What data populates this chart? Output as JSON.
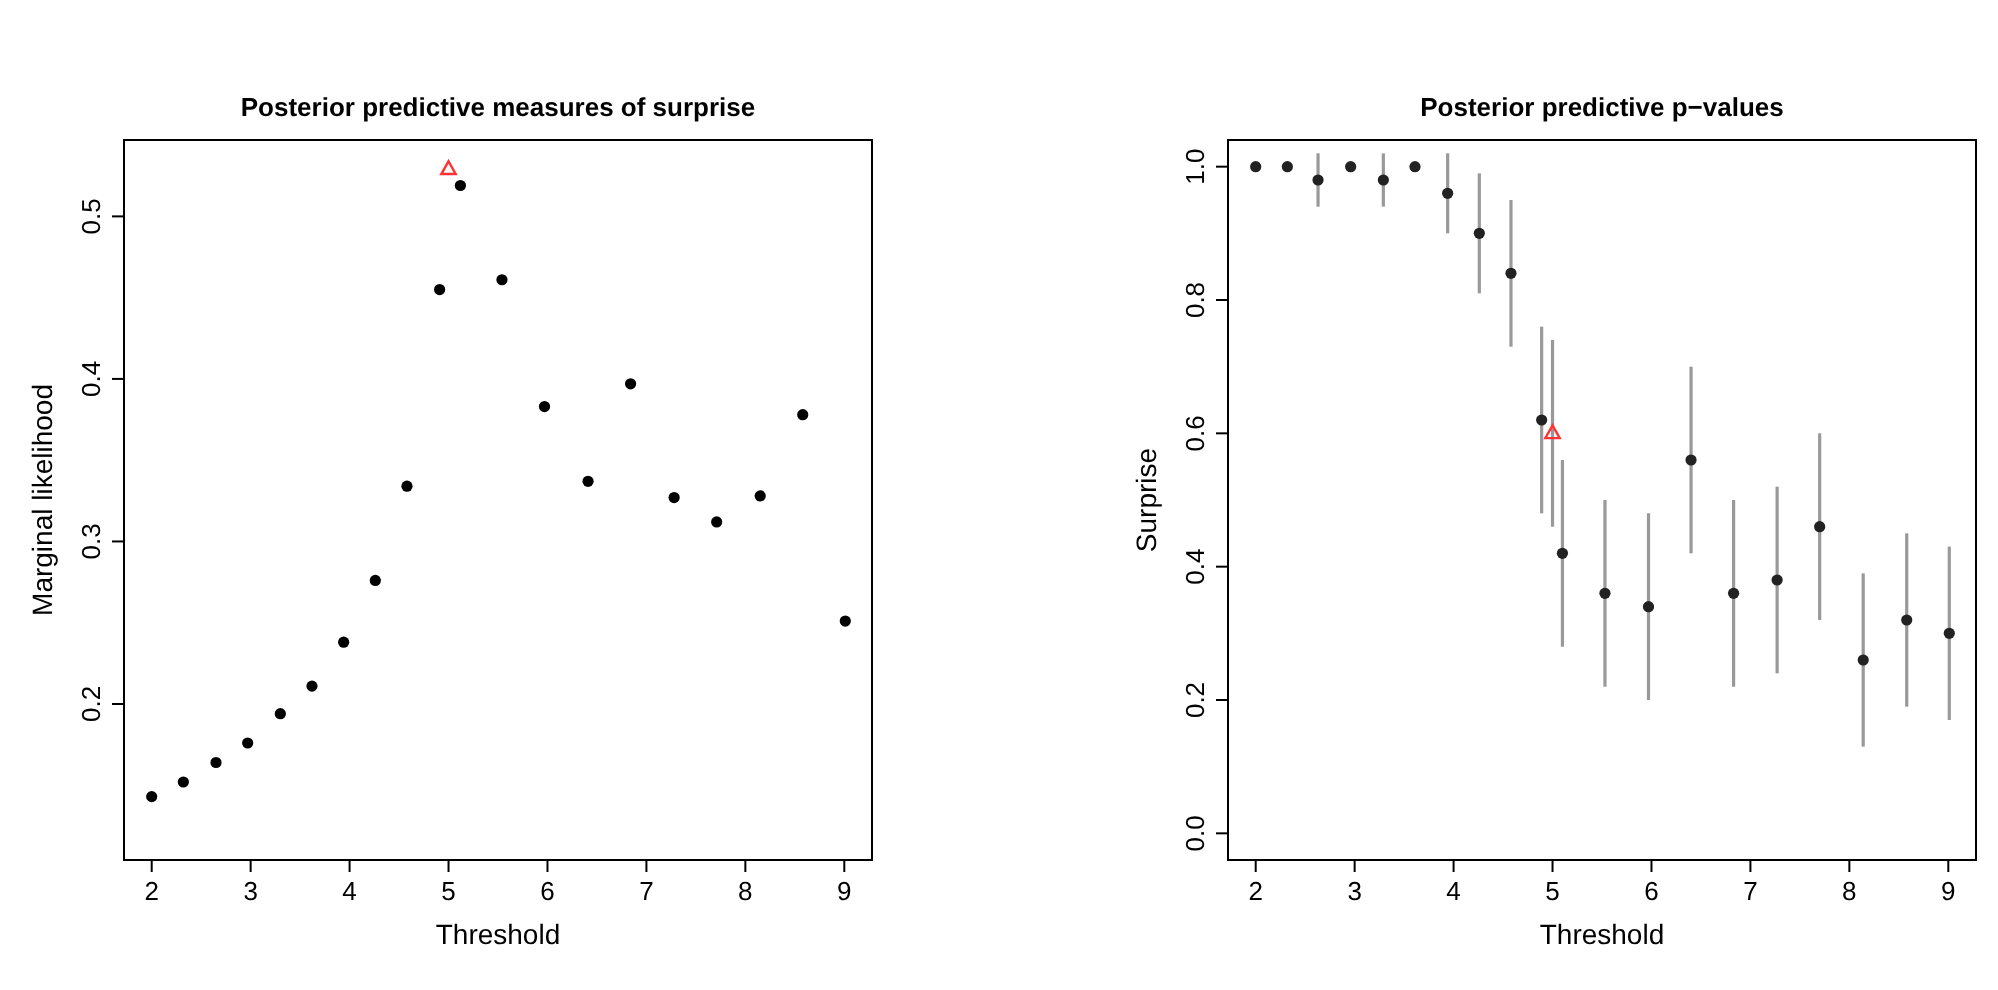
{
  "chart_data": [
    {
      "type": "scatter",
      "title": "Posterior predictive measures of surprise",
      "xlabel": "Threshold",
      "ylabel": "Marginal likelihood",
      "xlim": [
        1.72,
        9.28
      ],
      "xticks": [
        2,
        3,
        4,
        5,
        6,
        7,
        8,
        9
      ],
      "ylim": [
        0.104,
        0.547
      ],
      "yticks": [
        0.2,
        0.3,
        0.4,
        0.5
      ],
      "grid": false,
      "series": [
        {
          "color": "#000000",
          "marker": "circle",
          "x": [
            2.0,
            2.32,
            2.65,
            2.97,
            3.3,
            3.62,
            3.94,
            4.26,
            4.58,
            4.91,
            5.12,
            5.54,
            5.97,
            6.41,
            6.84,
            7.28,
            7.71,
            8.15,
            8.58,
            9.01
          ],
          "values": [
            0.143,
            0.152,
            0.164,
            0.176,
            0.194,
            0.211,
            0.238,
            0.276,
            0.334,
            0.455,
            0.519,
            0.461,
            0.383,
            0.337,
            0.397,
            0.327,
            0.312,
            0.328,
            0.378,
            0.251
          ]
        },
        {
          "color": "#ff3333",
          "marker": "triangle",
          "x": [
            5.0
          ],
          "values": [
            0.529
          ]
        }
      ]
    },
    {
      "type": "scatter",
      "title": "Posterior predictive p−values",
      "xlabel": "Threshold",
      "ylabel": "Surprise",
      "xlim": [
        1.72,
        9.28
      ],
      "xticks": [
        2,
        3,
        4,
        5,
        6,
        7,
        8,
        9
      ],
      "ylim": [
        -0.04,
        1.04
      ],
      "yticks": [
        {
          "value": 0,
          "label": "0.0"
        },
        0.2,
        0.4,
        0.6,
        0.8,
        {
          "value": 1,
          "label": "1.0"
        }
      ],
      "grid": false,
      "series": [
        {
          "color": "#222222",
          "marker": "circle",
          "x": [
            2.0,
            2.32,
            2.63,
            2.96,
            3.29,
            3.61,
            3.94,
            4.26,
            4.58,
            4.89,
            5.1,
            5.53,
            5.97,
            6.4,
            6.83,
            7.27,
            7.7,
            8.14,
            8.58,
            9.01
          ],
          "values": [
            1.0,
            1.0,
            0.98,
            1.0,
            0.98,
            1.0,
            0.96,
            0.9,
            0.84,
            0.62,
            0.42,
            0.36,
            0.34,
            0.56,
            0.36,
            0.38,
            0.46,
            0.26,
            0.32,
            0.3
          ],
          "errors": [
            null,
            null,
            [
              0.94,
              1.02
            ],
            null,
            [
              0.94,
              1.02
            ],
            null,
            [
              0.9,
              1.02
            ],
            [
              0.81,
              0.99
            ],
            [
              0.73,
              0.95
            ],
            [
              0.48,
              0.76
            ],
            [
              0.28,
              0.56
            ],
            [
              0.22,
              0.5
            ],
            [
              0.2,
              0.48
            ],
            [
              0.42,
              0.7
            ],
            [
              0.22,
              0.5
            ],
            [
              0.24,
              0.52
            ],
            [
              0.32,
              0.6
            ],
            [
              0.13,
              0.39
            ],
            [
              0.19,
              0.45
            ],
            [
              0.17,
              0.43
            ]
          ]
        },
        {
          "color": "#ff3333",
          "marker": "triangle",
          "x": [
            5.0
          ],
          "values": [
            0.6
          ],
          "errors": [
            [
              0.46,
              0.74
            ]
          ]
        }
      ]
    }
  ]
}
